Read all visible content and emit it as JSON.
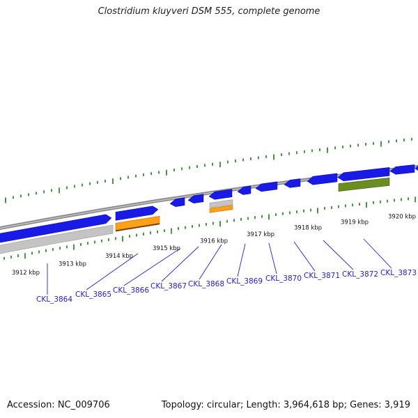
{
  "title": "Clostridium kluyveri DSM 555, complete genome",
  "footer": {
    "accession": "Accession: NC_009706",
    "summary": "Topology: circular; Length: 3,964,618 bp; Genes: 3,919"
  },
  "colors": {
    "forward_cds": "#1a1ae6",
    "reverse_gray": "#c4c4c4",
    "orange": "#ff9f1a",
    "olive": "#6b8e23",
    "ticks": "#1f7a1f",
    "backbone": "#8c8c8c",
    "label": "#2222cc"
  },
  "scale_labels": [
    "3912 kbp",
    "3913 kbp",
    "3914 kbp",
    "3915 kbp",
    "3916 kbp",
    "3917 kbp",
    "3918 kbp",
    "3919 kbp",
    "3920 kbp"
  ],
  "genes": [
    "CKL_3864",
    "CKL_3865",
    "CKL_3866",
    "CKL_3867",
    "CKL_3868",
    "CKL_3869",
    "CKL_3870",
    "CKL_3871",
    "CKL_3872",
    "CKL_3873"
  ]
}
